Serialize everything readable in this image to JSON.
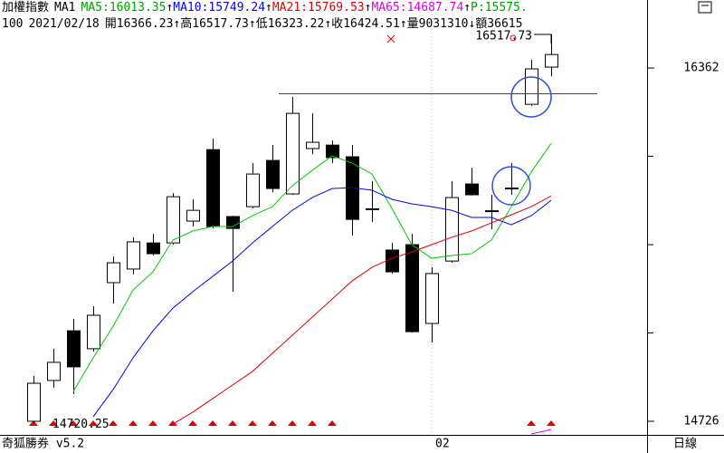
{
  "chart_data": {
    "type": "candlestick",
    "title": "加權指數",
    "subtitle": "MA1",
    "label_sep": ":",
    "p_label": "P:15575.",
    "p_color": "#00a000",
    "info": {
      "code": "100",
      "date": "2021/02/18",
      "open_label": "開",
      "high_label": "高",
      "low_label": "低",
      "close_label": "收",
      "volume_label": "量",
      "volume": 9031310,
      "amount_label": "額",
      "amount": "36615",
      "trends": [
        "↑",
        "↑",
        "↑",
        "↑",
        "↓"
      ]
    },
    "brand": "奇狐勝券 v5.2",
    "period_label": "日線",
    "categories": [
      null,
      null,
      null,
      null,
      null,
      null,
      null,
      null,
      null,
      null,
      null,
      null,
      null,
      null,
      null,
      null,
      null,
      null,
      null,
      null,
      "02",
      null,
      null,
      null,
      null,
      null,
      null
    ],
    "open": [
      14726,
      14915,
      15145,
      15062,
      15368,
      15431,
      15552,
      15552,
      15653,
      15984,
      15674,
      15720,
      15934,
      15779,
      15989,
      16005,
      15951,
      15708,
      15519,
      15544,
      15179,
      15468,
      15825,
      15699,
      15804,
      16194,
      16366.23
    ],
    "high": [
      14936,
      15062,
      15200,
      15259,
      15489,
      15578,
      15594,
      15783,
      15754,
      16035,
      15678,
      15922,
      16005,
      16228,
      16152,
      16026,
      16005,
      15838,
      15552,
      15594,
      15439,
      15838,
      15901,
      15775,
      15922,
      16400,
      16517.73
    ],
    "low": [
      14720.25,
      14881,
      14852,
      15049,
      15271,
      15406,
      15494,
      15544,
      15628,
      15619,
      15326,
      15712,
      15787,
      15775,
      15963,
      15922,
      15586,
      15649,
      15410,
      15137,
      15091,
      15460,
      15771,
      15615,
      15775,
      16186,
      16323.22
    ],
    "close": [
      14902,
      14999,
      14978,
      15217,
      15460,
      15557,
      15502,
      15766,
      15703,
      15628,
      15619,
      15871,
      15804,
      16152,
      16018,
      15947,
      15661,
      15708,
      15418,
      15141,
      15410,
      15762,
      15775,
      15703,
      15808,
      16358,
      16424.51
    ],
    "series": [
      {
        "name": "MA5",
        "color": "#00cc00",
        "text_color": "#00a000",
        "trend": "↑",
        "values": [
          null,
          null,
          14864,
          15020,
          15166,
          15334,
          15418,
          15565,
          15607,
          15628,
          15628,
          15678,
          15720,
          15817,
          15888,
          15955,
          15922,
          15871,
          15712,
          15544,
          15481,
          15494,
          15502,
          15565,
          15720,
          15880,
          16013.35
        ]
      },
      {
        "name": "MA10",
        "color": "#0000ff",
        "text_color": "#0000ff",
        "trend": "↑",
        "values": [
          null,
          null,
          null,
          14747,
          14873,
          15020,
          15145,
          15250,
          15326,
          15397,
          15468,
          15552,
          15628,
          15703,
          15762,
          15804,
          15808,
          15796,
          15754,
          15733,
          15720,
          15703,
          15670,
          15670,
          15636,
          15678,
          15749.24
        ]
      },
      {
        "name": "MA21",
        "color": "#e00000",
        "text_color": "#e00000",
        "trend": "↑",
        "values": [
          null,
          null,
          null,
          null,
          null,
          null,
          null,
          14713,
          14768,
          14831,
          14894,
          14957,
          15041,
          15124,
          15208,
          15292,
          15376,
          15439,
          15481,
          15510,
          15544,
          15578,
          15607,
          15645,
          15682,
          15720,
          15769.53
        ]
      },
      {
        "name": "MA65",
        "color": "#e000e0",
        "text_color": "#e000e0",
        "trend": "↑",
        "values": [
          null,
          null,
          null,
          null,
          null,
          null,
          null,
          null,
          null,
          null,
          null,
          null,
          null,
          null,
          null,
          null,
          null,
          null,
          null,
          null,
          null,
          null,
          null,
          null,
          null,
          14667,
          14687.74
        ]
      }
    ],
    "ylim": [
      14663,
      16677
    ],
    "yticks": [
      16362,
      14726
    ],
    "yminorticks": [
      15953,
      15544,
      15135
    ]
  }
}
